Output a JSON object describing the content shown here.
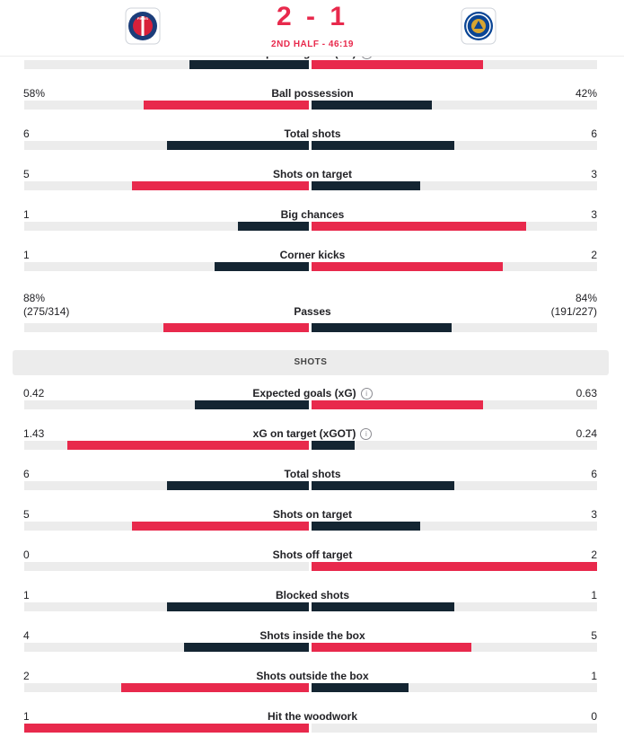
{
  "header": {
    "score": "2 - 1",
    "period": "2ND HALF - 46:19",
    "home_team_crest": "psg-crest-icon",
    "away_team_crest": "chelsea-crest-icon"
  },
  "colors": {
    "home": "#142532",
    "away": "#e8294c",
    "track": "#ececec"
  },
  "overview": [
    {
      "label": "Expected goals (xG)",
      "home": "0.42",
      "away": "0.63",
      "home_fill": 0.42,
      "away_fill": 0.6,
      "info": true,
      "home_color": "dark",
      "away_color": "red"
    },
    {
      "label": "Ball possession",
      "home": "58%",
      "away": "42%",
      "home_fill": 0.58,
      "away_fill": 0.42,
      "home_color": "red",
      "away_color": "dark"
    },
    {
      "label": "Total shots",
      "home": "6",
      "away": "6",
      "home_fill": 0.5,
      "away_fill": 0.5,
      "home_color": "dark",
      "away_color": "dark"
    },
    {
      "label": "Shots on target",
      "home": "5",
      "away": "3",
      "home_fill": 0.62,
      "away_fill": 0.38,
      "home_color": "red",
      "away_color": "dark"
    },
    {
      "label": "Big chances",
      "home": "1",
      "away": "3",
      "home_fill": 0.25,
      "away_fill": 0.75,
      "home_color": "dark",
      "away_color": "red"
    },
    {
      "label": "Corner kicks",
      "home": "1",
      "away": "2",
      "home_fill": 0.33,
      "away_fill": 0.67,
      "home_color": "dark",
      "away_color": "red"
    },
    {
      "label": "Passes",
      "home": "88%",
      "home_sub": "(275/314)",
      "away": "84%",
      "away_sub": "(191/227)",
      "home_fill": 0.51,
      "away_fill": 0.49,
      "home_color": "red",
      "away_color": "dark"
    }
  ],
  "section_title": "SHOTS",
  "shots": [
    {
      "label": "Expected goals (xG)",
      "home": "0.42",
      "away": "0.63",
      "home_fill": 0.4,
      "away_fill": 0.6,
      "info": true,
      "home_color": "dark",
      "away_color": "red"
    },
    {
      "label": "xG on target (xGOT)",
      "home": "1.43",
      "away": "0.24",
      "home_fill": 0.85,
      "away_fill": 0.15,
      "info": true,
      "home_color": "red",
      "away_color": "dark"
    },
    {
      "label": "Total shots",
      "home": "6",
      "away": "6",
      "home_fill": 0.5,
      "away_fill": 0.5,
      "home_color": "dark",
      "away_color": "dark"
    },
    {
      "label": "Shots on target",
      "home": "5",
      "away": "3",
      "home_fill": 0.62,
      "away_fill": 0.38,
      "home_color": "red",
      "away_color": "dark"
    },
    {
      "label": "Shots off target",
      "home": "0",
      "away": "2",
      "home_fill": 0.0,
      "away_fill": 1.0,
      "home_color": "dark",
      "away_color": "red"
    },
    {
      "label": "Blocked shots",
      "home": "1",
      "away": "1",
      "home_fill": 0.5,
      "away_fill": 0.5,
      "home_color": "dark",
      "away_color": "dark"
    },
    {
      "label": "Shots inside the box",
      "home": "4",
      "away": "5",
      "home_fill": 0.44,
      "away_fill": 0.56,
      "home_color": "dark",
      "away_color": "red"
    },
    {
      "label": "Shots outside the box",
      "home": "2",
      "away": "1",
      "home_fill": 0.66,
      "away_fill": 0.34,
      "home_color": "red",
      "away_color": "dark"
    },
    {
      "label": "Hit the woodwork",
      "home": "1",
      "away": "0",
      "home_fill": 1.0,
      "away_fill": 0.0,
      "home_color": "red",
      "away_color": "dark"
    }
  ]
}
